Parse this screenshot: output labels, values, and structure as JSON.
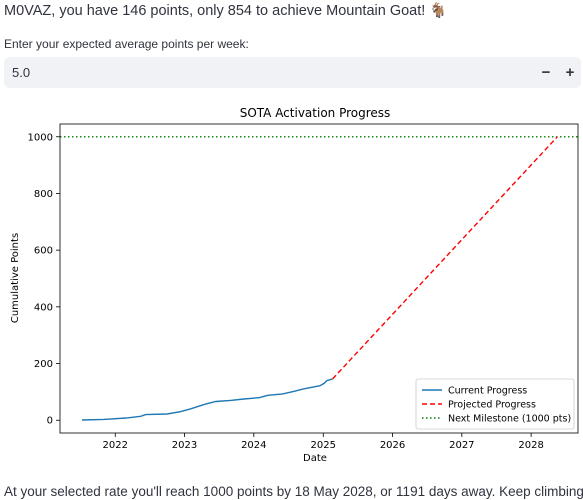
{
  "header": {
    "message": "M0VAZ, you have 146 points, only 854 to achieve Mountain Goat!",
    "emoji": "🐐"
  },
  "rate_input": {
    "label": "Enter your expected average points per week:",
    "value": "5.0",
    "minus_label": "−",
    "plus_label": "+"
  },
  "chart_data": {
    "type": "line",
    "title": "SOTA Activation Progress",
    "xlabel": "Date",
    "ylabel": "Cumulative Points",
    "x_type": "date",
    "xlim": [
      "2021-03-16",
      "2028-09-04"
    ],
    "ylim": [
      -45,
      1045
    ],
    "x_ticks": [
      "2022",
      "2023",
      "2024",
      "2025",
      "2026",
      "2027",
      "2028"
    ],
    "y_ticks": [
      0,
      200,
      400,
      600,
      800,
      1000
    ],
    "grid": false,
    "legend_position": "lower-right",
    "series": [
      {
        "name": "Current Progress",
        "style": "solid",
        "color": "#1f77b4",
        "x": [
          "2021-07-10",
          "2021-11-01",
          "2022-03-01",
          "2022-05-15",
          "2022-06-10",
          "2022-10-01",
          "2022-12-10",
          "2023-02-01",
          "2023-04-15",
          "2023-06-15",
          "2023-09-01",
          "2023-11-10",
          "2024-02-01",
          "2024-03-15",
          "2024-06-01",
          "2024-08-01",
          "2024-09-15",
          "2024-11-15",
          "2024-12-15",
          "2025-01-05",
          "2025-01-20",
          "2025-02-19"
        ],
        "y": [
          1,
          3,
          8,
          14,
          20,
          22,
          30,
          40,
          56,
          66,
          70,
          75,
          80,
          88,
          93,
          102,
          110,
          118,
          122,
          130,
          140,
          146
        ]
      },
      {
        "name": "Projected Progress",
        "style": "dashed",
        "color": "#ff0000",
        "x": [
          "2025-02-19",
          "2028-05-18"
        ],
        "y": [
          146,
          1000
        ]
      },
      {
        "name": "Next Milestone (1000 pts)",
        "style": "dotted",
        "color": "#008000",
        "x": [
          "2021-03-16",
          "2028-09-04"
        ],
        "y": [
          1000,
          1000
        ]
      }
    ]
  },
  "footer": {
    "message": "At your selected rate you'll reach 1000 points by 18 May 2028, or 1191 days away. Keep climbing!",
    "emoji": "🥾"
  }
}
